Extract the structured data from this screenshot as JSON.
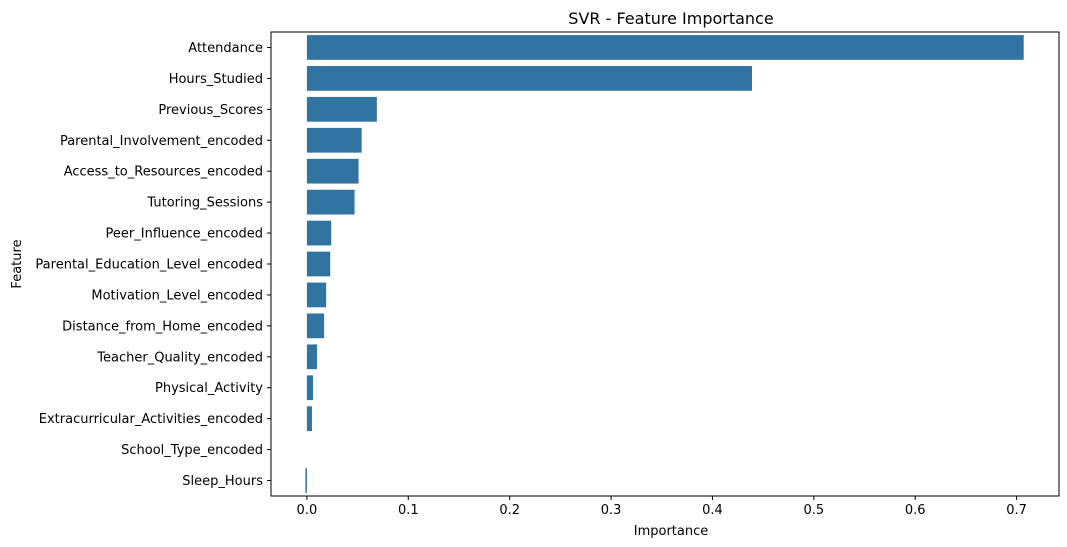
{
  "chart_data": {
    "type": "bar",
    "orientation": "horizontal",
    "title": "SVR - Feature Importance",
    "xlabel": "Importance",
    "ylabel": "Feature",
    "xlim": [
      -0.0354,
      0.7418
    ],
    "xticks": [
      0.0,
      0.1,
      0.2,
      0.3,
      0.4,
      0.5,
      0.6,
      0.7
    ],
    "xtick_labels": [
      "0.0",
      "0.1",
      "0.2",
      "0.3",
      "0.4",
      "0.5",
      "0.6",
      "0.7"
    ],
    "bar_color": "#3274a1",
    "categories": [
      "Attendance",
      "Hours_Studied",
      "Previous_Scores",
      "Parental_Involvement_encoded",
      "Access_to_Resources_encoded",
      "Tutoring_Sessions",
      "Peer_Influence_encoded",
      "Parental_Education_Level_encoded",
      "Motivation_Level_encoded",
      "Distance_from_Home_encoded",
      "Teacher_Quality_encoded",
      "Physical_Activity",
      "Extracurricular_Activities_encoded",
      "School_Type_encoded",
      "Sleep_Hours"
    ],
    "values": [
      0.707,
      0.439,
      0.069,
      0.054,
      0.051,
      0.047,
      0.024,
      0.023,
      0.019,
      0.017,
      0.01,
      0.006,
      0.005,
      0.0,
      -0.0015
    ],
    "grid": false,
    "legend": "none"
  }
}
